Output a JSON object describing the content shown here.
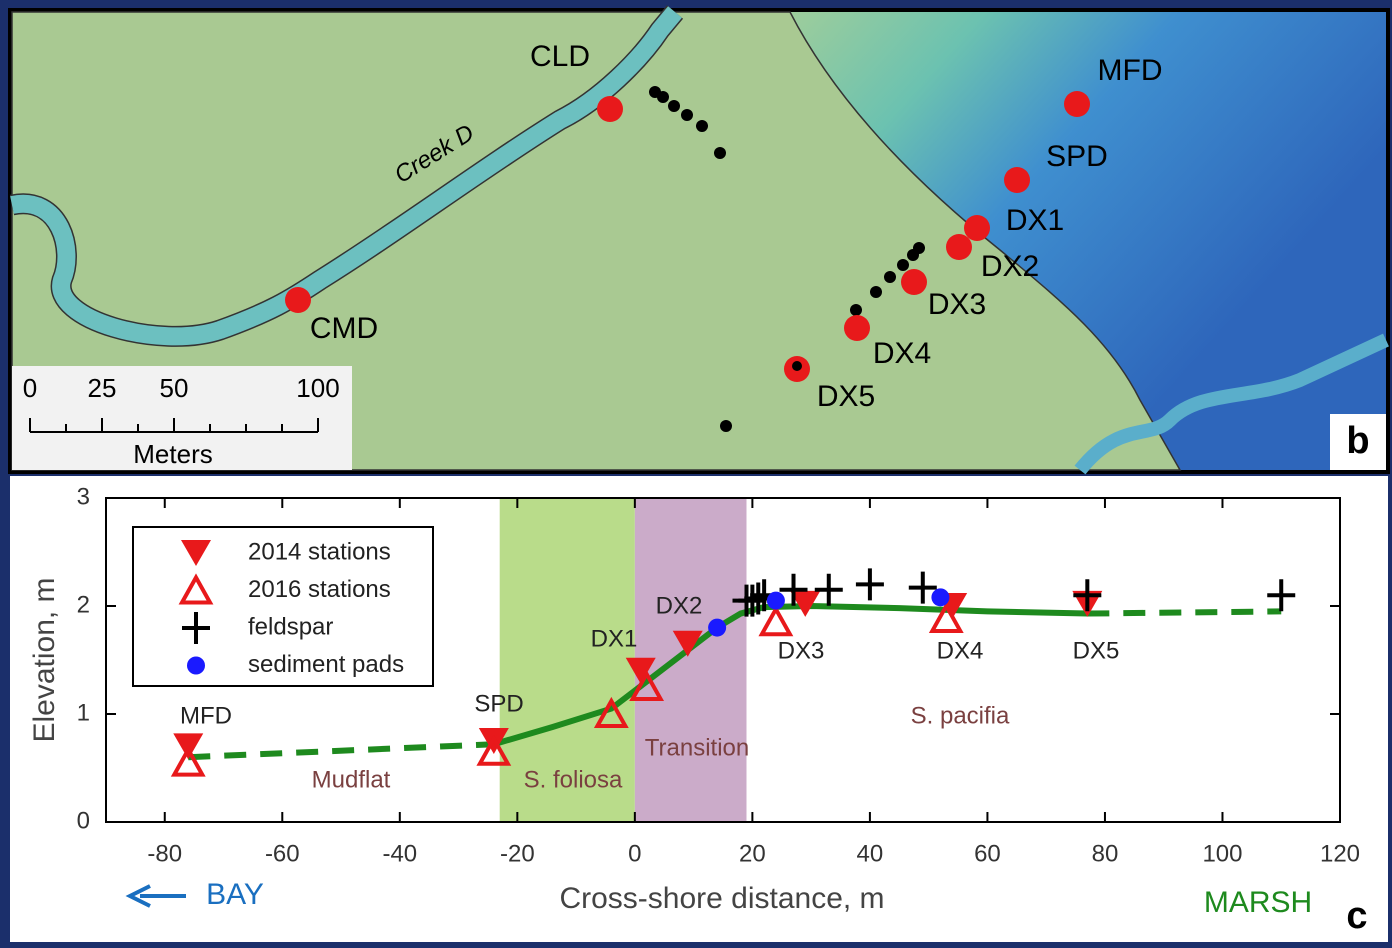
{
  "map_panel": {
    "stations": [
      "CLD",
      "MFD",
      "SPD",
      "DX1",
      "DX2",
      "DX3",
      "DX4",
      "DX5",
      "CMD"
    ],
    "creek_label": "Creek D",
    "scale_bar": {
      "ticks": [
        0,
        25,
        50,
        100
      ],
      "unit": "Meters"
    },
    "panel_label": "b"
  },
  "chart_data": {
    "type": "scatter",
    "xlabel": "Cross-shore distance, m",
    "ylabel": "Elevation, m",
    "xlim": [
      -90,
      120
    ],
    "xticks": [
      -80,
      -60,
      -40,
      -20,
      0,
      20,
      40,
      60,
      80,
      100,
      120
    ],
    "ylim": [
      0,
      3
    ],
    "yticks": [
      0,
      1,
      2,
      3
    ],
    "regions": [
      {
        "label": "S. foliosa",
        "x": [
          -23,
          0
        ],
        "color": "#b9dc8a"
      },
      {
        "label": "Transition",
        "x": [
          0,
          19
        ],
        "color": "#cbabc9"
      }
    ],
    "lines": [
      {
        "color": "#1e8a1e",
        "dashed": true,
        "x": [
          -76,
          -24
        ],
        "values": [
          0.6,
          0.72
        ]
      },
      {
        "color": "#1e8a1e",
        "dashed": false,
        "x": [
          -24,
          -14,
          -4,
          2,
          8,
          14,
          18,
          22,
          30,
          45,
          60,
          77
        ],
        "values": [
          0.72,
          0.88,
          1.05,
          1.3,
          1.55,
          1.8,
          1.93,
          1.99,
          2.0,
          1.98,
          1.95,
          1.93
        ]
      },
      {
        "color": "#1e8a1e",
        "dashed": true,
        "x": [
          77,
          110
        ],
        "values": [
          1.93,
          1.95
        ]
      }
    ],
    "series": [
      {
        "name": "2014 stations",
        "color": "#e8191b",
        "marker": "triangle-down",
        "x": [
          -76,
          -24,
          1,
          9,
          29,
          54,
          77
        ],
        "values": [
          0.7,
          0.75,
          1.4,
          1.65,
          2.02,
          2.0,
          2.02
        ]
      },
      {
        "name": "2016 stations",
        "color": "#e8191b",
        "marker": "triangle-up-open",
        "x": [
          -76,
          -24,
          -4,
          2,
          24,
          53
        ],
        "values": [
          0.55,
          0.65,
          1.0,
          1.25,
          1.85,
          1.88
        ]
      },
      {
        "name": "feldspar",
        "color": "#000000",
        "marker": "plus",
        "x": [
          19,
          20,
          21,
          22,
          27,
          33,
          40,
          49,
          77,
          110
        ],
        "values": [
          2.05,
          2.05,
          2.07,
          2.1,
          2.15,
          2.15,
          2.2,
          2.17,
          2.1,
          2.1
        ]
      },
      {
        "name": "sediment pads",
        "color": "#1a1aff",
        "marker": "circle",
        "x": [
          14,
          24,
          52
        ],
        "values": [
          1.8,
          2.05,
          2.08
        ]
      }
    ],
    "annotations": [
      "MFD",
      "SPD",
      "DX1",
      "DX2",
      "DX3",
      "DX4",
      "DX5",
      "Mudflat",
      "S. pacifia",
      "BAY",
      "MARSH"
    ],
    "panel_label": "c"
  }
}
